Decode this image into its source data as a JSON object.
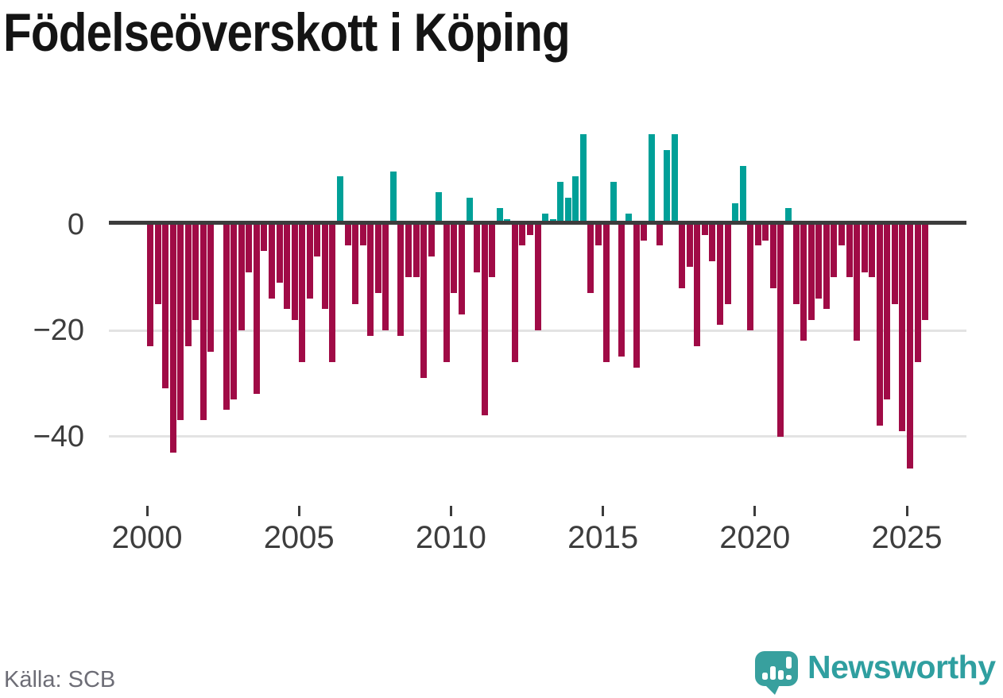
{
  "page": {
    "title": "Födelseöverskott i Köping",
    "source": "Källa: SCB"
  },
  "branding": {
    "logo_text": "Newsworthy",
    "logo_icon": "newsworthy-chart-speech-bubble-icon"
  },
  "colors": {
    "positive_bar": "#00a098",
    "negative_bar": "#a00b46",
    "zero_line": "#3c3c3c",
    "gridline": "#e3e3e3",
    "axis_text": "#3d3d3d",
    "source_text": "#6d6d76",
    "brand_teal": "#38a09e",
    "title_text": "#141414"
  },
  "chart_data": {
    "type": "bar",
    "title": "Födelseöverskott i Köping",
    "frequency": "quarterly",
    "x_range": "2000 Q1 - 2025 Q3",
    "grid": "horizontal",
    "legend": "none",
    "ylim": [
      -48,
      19
    ],
    "x_tick_labels": [
      "2000",
      "2005",
      "2010",
      "2015",
      "2020",
      "2025"
    ],
    "y_tick_values": [
      0,
      -20,
      -40
    ],
    "y_tick_labels": [
      "0",
      "−20",
      "−40"
    ],
    "series": [
      {
        "name": "Födelseöverskott",
        "quarters": [
          "2000 Q1",
          "2000 Q2",
          "2000 Q3",
          "2000 Q4",
          "2001 Q1",
          "2001 Q2",
          "2001 Q3",
          "2001 Q4",
          "2002 Q1",
          "2002 Q2",
          "2002 Q3",
          "2002 Q4",
          "2003 Q1",
          "2003 Q2",
          "2003 Q3",
          "2003 Q4",
          "2004 Q1",
          "2004 Q2",
          "2004 Q3",
          "2004 Q4",
          "2005 Q1",
          "2005 Q2",
          "2005 Q3",
          "2005 Q4",
          "2006 Q1",
          "2006 Q2",
          "2006 Q3",
          "2006 Q4",
          "2007 Q1",
          "2007 Q2",
          "2007 Q3",
          "2007 Q4",
          "2008 Q1",
          "2008 Q2",
          "2008 Q3",
          "2008 Q4",
          "2009 Q1",
          "2009 Q2",
          "2009 Q3",
          "2009 Q4",
          "2010 Q1",
          "2010 Q2",
          "2010 Q3",
          "2010 Q4",
          "2011 Q1",
          "2011 Q2",
          "2011 Q3",
          "2011 Q4",
          "2012 Q1",
          "2012 Q2",
          "2012 Q3",
          "2012 Q4",
          "2013 Q1",
          "2013 Q2",
          "2013 Q3",
          "2013 Q4",
          "2014 Q1",
          "2014 Q2",
          "2014 Q3",
          "2014 Q4",
          "2015 Q1",
          "2015 Q2",
          "2015 Q3",
          "2015 Q4",
          "2016 Q1",
          "2016 Q2",
          "2016 Q3",
          "2016 Q4",
          "2017 Q1",
          "2017 Q2",
          "2017 Q3",
          "2017 Q4",
          "2018 Q1",
          "2018 Q2",
          "2018 Q3",
          "2018 Q4",
          "2019 Q1",
          "2019 Q2",
          "2019 Q3",
          "2019 Q4",
          "2020 Q1",
          "2020 Q2",
          "2020 Q3",
          "2020 Q4",
          "2021 Q1",
          "2021 Q2",
          "2021 Q3",
          "2021 Q4",
          "2022 Q1",
          "2022 Q2",
          "2022 Q3",
          "2022 Q4",
          "2023 Q1",
          "2023 Q2",
          "2023 Q3",
          "2023 Q4",
          "2024 Q1",
          "2024 Q2",
          "2024 Q3",
          "2024 Q4",
          "2025 Q1",
          "2025 Q2",
          "2025 Q3"
        ],
        "values": [
          -23,
          -15,
          -31,
          -43,
          -37,
          -23,
          -18,
          -37,
          -24,
          0,
          -35,
          -33,
          -20,
          -9,
          -32,
          -5,
          -14,
          -11,
          -16,
          -18,
          -26,
          -14,
          -6,
          -16,
          -26,
          9,
          -4,
          -15,
          -4,
          -21,
          -13,
          -20,
          10,
          -21,
          -10,
          -10,
          -29,
          -6,
          6,
          -26,
          -13,
          -17,
          5,
          -9,
          -36,
          -10,
          3,
          1,
          -26,
          -4,
          -2,
          -20,
          2,
          1,
          8,
          5,
          9,
          17,
          -13,
          -4,
          -26,
          8,
          -25,
          2,
          -27,
          -3,
          17,
          -4,
          14,
          17,
          -12,
          -8,
          -23,
          -2,
          -7,
          -19,
          -15,
          4,
          11,
          -20,
          -4,
          -3,
          -12,
          -40,
          3,
          -15,
          -22,
          -18,
          -14,
          -16,
          -10,
          -4,
          -10,
          -22,
          -9,
          -10,
          -38,
          -33,
          -15,
          -39,
          -46,
          -26,
          -18
        ]
      }
    ]
  }
}
